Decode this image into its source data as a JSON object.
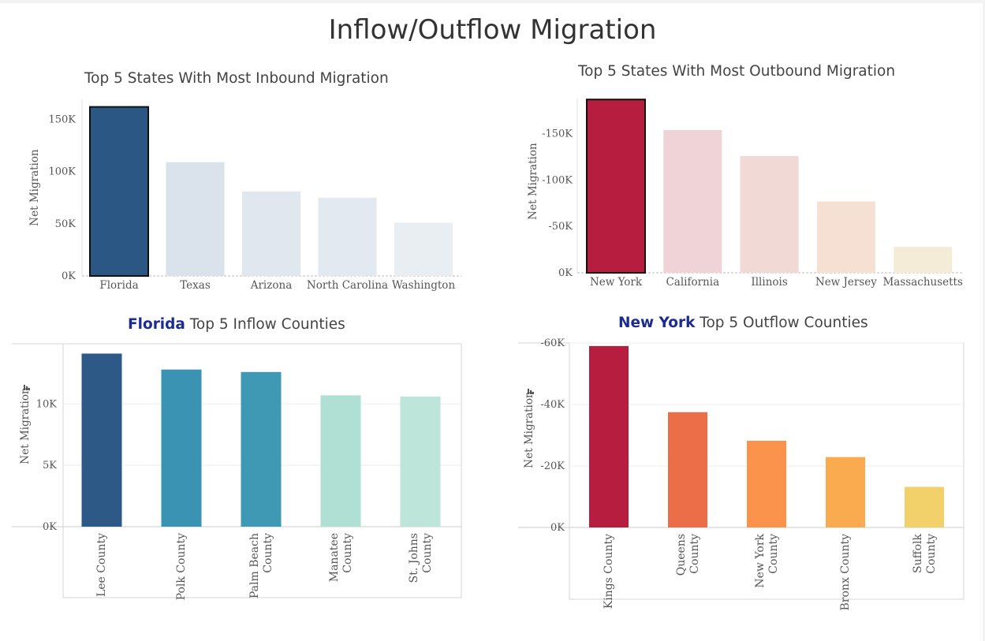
{
  "title": "Inflow/Outflow Migration",
  "charts": {
    "inbound": {
      "title": "Top 5 States With Most Inbound Migration"
    },
    "outbound": {
      "title": "Top 5 States With Most Outbound Migration"
    },
    "inflow": {
      "title_highlight": "Florida",
      "title_rest": " Top 5 Inflow Counties"
    },
    "outflow": {
      "title_highlight": "New York",
      "title_rest": " Top 5 Outflow Counties"
    }
  },
  "colors": {
    "highlight": "#1c2b8f"
  },
  "chart_data": [
    {
      "id": "inbound",
      "type": "bar",
      "title": "Top 5 States With Most Inbound Migration",
      "ylabel": "Net Migration",
      "categories": [
        "Florida",
        "Texas",
        "Arizona",
        "North Carolina",
        "Washington"
      ],
      "values": [
        162000,
        109000,
        81000,
        75000,
        51000
      ],
      "ylim": [
        0,
        170000
      ],
      "ticks": [
        0,
        50000,
        100000,
        150000
      ],
      "tick_labels": [
        "0K",
        "50K",
        "100K",
        "150K"
      ],
      "colors": [
        "#2a5783",
        "#dae2eb",
        "#e0e7ee",
        "#e2e9f0",
        "#e8eef2"
      ],
      "selected": "Florida",
      "grid": false
    },
    {
      "id": "outbound",
      "type": "bar",
      "title": "Top 5 States With Most Outbound Migration",
      "ylabel": "Net Migration",
      "categories": [
        "New York",
        "California",
        "Illinois",
        "New Jersey",
        "Massachusetts"
      ],
      "values": [
        -187000,
        -154000,
        -126000,
        -77000,
        -28000
      ],
      "ylim": [
        0,
        -188000
      ],
      "ticks": [
        0,
        -50000,
        -100000,
        -150000
      ],
      "tick_labels": [
        "0K",
        "-50K",
        "-100K",
        "-150K"
      ],
      "colors": [
        "#b71d3e",
        "#f0d3d6",
        "#f1d9d6",
        "#f6e0d4",
        "#f5ecd8"
      ],
      "selected": "New York",
      "grid": false
    },
    {
      "id": "inflow",
      "type": "bar",
      "title": "Florida Top 5 Inflow Counties",
      "ylabel": "Net Migration",
      "categories": [
        "Lee County",
        "Polk County",
        "Palm Beach County",
        "Manatee County",
        "St. Johns County"
      ],
      "category_lines": [
        [
          "Lee County"
        ],
        [
          "Polk County"
        ],
        [
          "Palm Beach",
          "County"
        ],
        [
          "Manatee",
          "County"
        ],
        [
          "St. Johns",
          "County"
        ]
      ],
      "values": [
        14100,
        12800,
        12600,
        10700,
        10600
      ],
      "ylim": [
        0,
        14900
      ],
      "ticks": [
        0,
        5000,
        10000
      ],
      "tick_labels": [
        "0K",
        "5K",
        "10K"
      ],
      "colors": [
        "#2c5985",
        "#3a93b3",
        "#3f99b4",
        "#b0dfd4",
        "#bde5da"
      ],
      "grid": true
    },
    {
      "id": "outflow",
      "type": "bar",
      "title": "New York Top 5 Outflow Counties",
      "ylabel": "Net Migration",
      "categories": [
        "Kings County",
        "Queens County",
        "New York County",
        "Bronx County",
        "Suffolk County"
      ],
      "category_lines": [
        [
          "Kings County"
        ],
        [
          "Queens",
          "County"
        ],
        [
          "New York",
          "County"
        ],
        [
          "Bronx County"
        ],
        [
          "Suffolk",
          "County"
        ]
      ],
      "values": [
        -59000,
        -37500,
        -28200,
        -22900,
        -13200
      ],
      "ylim": [
        0,
        -60000
      ],
      "ticks": [
        0,
        -20000,
        -40000,
        -60000
      ],
      "tick_labels": [
        "0K",
        "-20K",
        "-40K",
        "-60K"
      ],
      "colors": [
        "#b71d3e",
        "#ec6e49",
        "#fb934d",
        "#fbab4f",
        "#f2d16a"
      ],
      "grid": true
    }
  ]
}
